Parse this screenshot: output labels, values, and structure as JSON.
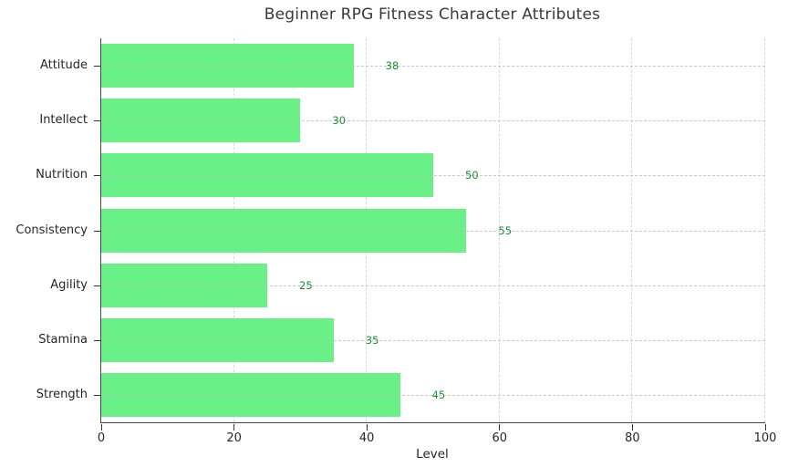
{
  "title": "Beginner RPG Fitness Character Attributes",
  "chart_data": {
    "type": "bar",
    "orientation": "horizontal",
    "title": "Beginner RPG Fitness Character Attributes",
    "categories": [
      "Attitude",
      "Intellect",
      "Nutrition",
      "Consistency",
      "Agility",
      "Stamina",
      "Strength"
    ],
    "values": [
      38,
      30,
      50,
      55,
      25,
      35,
      45
    ],
    "value_labels": [
      "38",
      "30",
      "50",
      "55",
      "25",
      "35",
      "45"
    ],
    "xlabel": "Level",
    "ylabel": "",
    "xlim": [
      0,
      100
    ],
    "xticks": [
      "0",
      "20",
      "40",
      "60",
      "80",
      "100"
    ],
    "xtick_values": [
      0,
      20,
      40,
      60,
      80,
      100
    ],
    "grid": "dashed",
    "legend": "none",
    "colors": {
      "bar_fill": "#69f087",
      "value_label": "#1d8f35",
      "grid_line": "#d7d7d7",
      "axis_line": "#454545",
      "tick_label": "#262626",
      "title_text": "#3a3a3a"
    }
  }
}
